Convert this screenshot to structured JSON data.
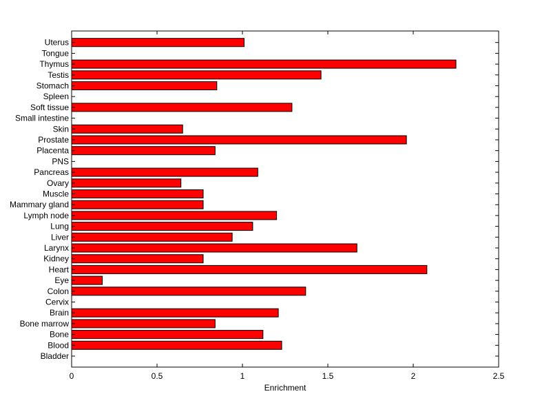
{
  "chart_data": {
    "type": "bar",
    "orientation": "horizontal",
    "title": "",
    "xlabel": "Enrichment",
    "ylabel": "",
    "xlim": [
      0,
      2.5
    ],
    "xticks": [
      "0",
      "0.5",
      "1",
      "1.5",
      "2",
      "2.5"
    ],
    "grid": false,
    "legend": "none",
    "bar_color": "#ff0000",
    "bar_edge_color": "#000000",
    "categories": [
      "Bladder",
      "Blood",
      "Bone",
      "Bone marrow",
      "Brain",
      "Cervix",
      "Colon",
      "Eye",
      "Heart",
      "Kidney",
      "Larynx",
      "Liver",
      "Lung",
      "Lymph node",
      "Mammary gland",
      "Muscle",
      "Ovary",
      "Pancreas",
      "PNS",
      "Placenta",
      "Prostate",
      "Skin",
      "Small intestine",
      "Soft tissue",
      "Spleen",
      "Stomach",
      "Testis",
      "Thymus",
      "Tongue",
      "Uterus"
    ],
    "values": [
      0,
      1.23,
      1.12,
      0.84,
      1.21,
      0,
      1.37,
      0.18,
      2.08,
      0.77,
      1.67,
      0.94,
      1.06,
      1.2,
      0.77,
      0.77,
      0.64,
      1.09,
      0,
      0.84,
      1.96,
      0.65,
      0,
      1.29,
      0,
      0.85,
      1.46,
      2.25,
      0,
      1.01
    ]
  }
}
